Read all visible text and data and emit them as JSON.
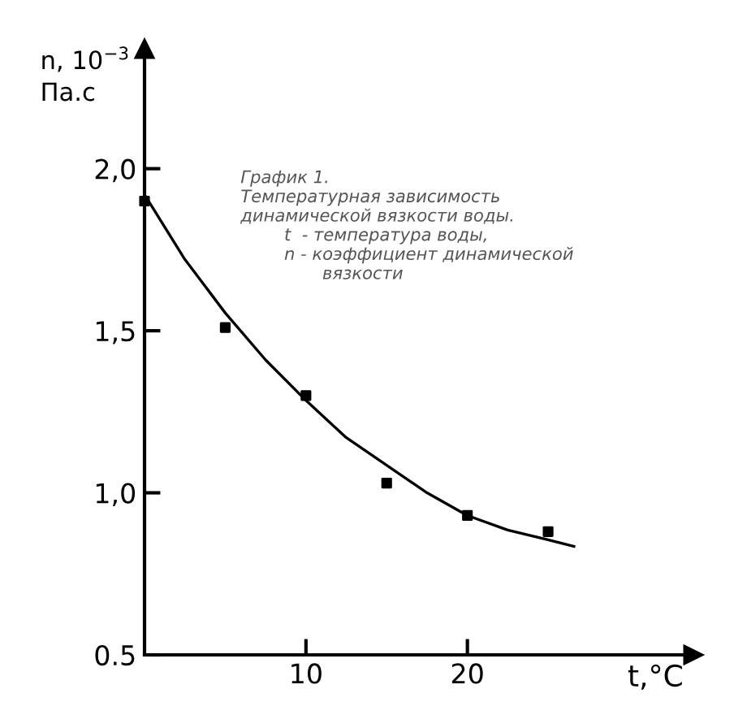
{
  "chart_data": {
    "type": "scatter",
    "ylabel": "n, 10$^{−3}$\nПа.с",
    "xlabel": "t,°C",
    "annotations": [
      "График 1.\nТемпературная зависимость\nдинамической вязкости воды.\n        t  - температура воды,\n        n - коэффициент динамической\n               вязкости"
    ],
    "xlim": [
      0,
      34
    ],
    "ylim": [
      0.5,
      2.37
    ],
    "xticks": [
      10,
      20
    ],
    "yticks": [
      {
        "value": 0.5,
        "label": "0.5"
      },
      {
        "value": 1.0,
        "label": "1,0"
      },
      {
        "value": 1.5,
        "label": "1,5"
      },
      {
        "value": 2.0,
        "label": "2,0"
      }
    ],
    "grid": false,
    "marker": "square",
    "series": [
      {
        "color": "#000000",
        "x": [
          0,
          5,
          10,
          15,
          20,
          25
        ],
        "values": [
          1.9,
          1.51,
          1.3,
          1.03,
          0.93,
          0.88
        ]
      },
      {
        "type": "line",
        "color": "#000000",
        "line_style": "solid",
        "marker": "none",
        "x": [
          0,
          2.5,
          5,
          7.5,
          10,
          12.5,
          15,
          17.5,
          20,
          22.5,
          25,
          26.6
        ],
        "values": [
          1.92,
          1.72,
          1.555,
          1.41,
          1.285,
          1.17,
          1.085,
          1.0,
          0.93,
          0.885,
          0.855,
          0.835
        ]
      }
    ]
  }
}
